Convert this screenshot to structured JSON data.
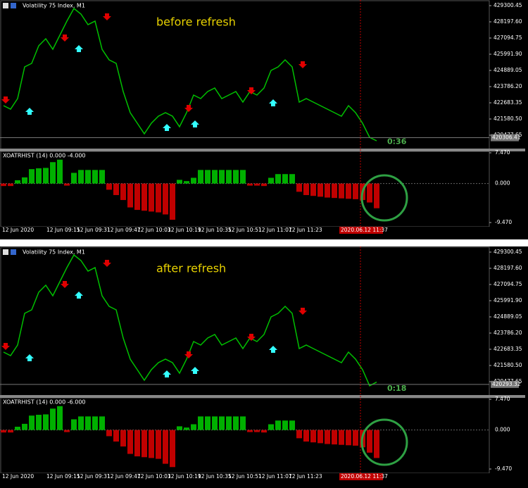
{
  "panels": [
    {
      "window_title": "Volatility 75 Index, M1",
      "annotation": "before refresh",
      "countdown": "0:36",
      "current_price": 420306.41,
      "current_price_label": "420306.41",
      "price": {
        "ylim": [
          419518,
          429684
        ],
        "yticks": [
          429300.45,
          {
            "value": 428197.6,
            "label": "428197.60"
          },
          427094.75,
          {
            "value": 425991.9,
            "label": "425991.90"
          },
          424889.05,
          {
            "value": 423786.2,
            "label": "423786.20"
          },
          422683.35,
          {
            "value": 421580.5,
            "label": "421580.50"
          },
          420477.65
        ],
        "values": [
          422491,
          422251,
          422971,
          425128,
          425368,
          426567,
          427046,
          426327,
          427286,
          428245,
          429108,
          428725,
          428005,
          428245,
          426327,
          425608,
          425368,
          423450,
          422012,
          421292,
          420573,
          421292,
          421772,
          422012,
          421772,
          421053,
          422012,
          423210,
          422971,
          423450,
          423690,
          422971,
          423210,
          423450,
          422731,
          423450,
          423210,
          423690,
          424889,
          425128,
          425608,
          425128,
          422731,
          422971,
          422731,
          422491,
          422251,
          422012,
          421772,
          422491,
          422012,
          421292,
          420333,
          420094
        ]
      },
      "indicator": {
        "title": "XOATRHIST (14) 0.000 -4.000",
        "ylim": [
          -10.15,
          7.81
        ],
        "yticks": [
          {
            "value": 7.47,
            "label": "7.470"
          },
          {
            "value": 0,
            "label": "0.000"
          },
          {
            "value": -9.47,
            "label": "-9.470"
          }
        ],
        "values": [
          -0.6,
          -0.6,
          0.8,
          1.5,
          3.5,
          3.7,
          3.8,
          5.2,
          5.8,
          -0.5,
          2.6,
          3.3,
          3.3,
          3.3,
          3.3,
          -1.5,
          -2.8,
          -4.0,
          -5.8,
          -6.4,
          -6.6,
          -6.8,
          -7.0,
          -7.5,
          -8.8,
          0.9,
          0.6,
          1.4,
          3.3,
          3.3,
          3.3,
          3.3,
          3.3,
          3.3,
          3.3,
          -0.5,
          -0.5,
          -0.6,
          1.4,
          2.3,
          2.3,
          2.3,
          -2.0,
          -2.8,
          -3.0,
          -3.2,
          -3.4,
          -3.5,
          -3.6,
          -3.7,
          -3.8,
          -4.0,
          -4.6,
          -6.0
        ]
      },
      "time_labels": [
        "12 Jun 2020",
        "12 Jun 09:15",
        "12 Jun 09:31",
        "12 Jun 09:47",
        "12 Jun 10:03",
        "12 Jun 10:19",
        "12 Jun 10:35",
        "12 Jun 10:51",
        "12 Jun 11:07",
        "12 Jun 11:23"
      ],
      "cursor_time": "2020.06.12 11:37"
    },
    {
      "window_title": "Volatility 75 Index, M1",
      "annotation": "after refresh",
      "countdown": "0:18",
      "current_price": 420293.32,
      "current_price_label": "420293.32",
      "price": {
        "ylim": [
          419518,
          429684
        ],
        "yticks": [
          429300.45,
          {
            "value": 428197.6,
            "label": "428197.60"
          },
          427094.75,
          {
            "value": 425991.9,
            "label": "425991.90"
          },
          424889.05,
          {
            "value": 423786.2,
            "label": "423786.20"
          },
          422683.35,
          {
            "value": 421580.5,
            "label": "421580.50"
          },
          420477.65
        ],
        "values": [
          422491,
          422251,
          422971,
          425128,
          425368,
          426567,
          427046,
          426327,
          427286,
          428245,
          429108,
          428725,
          428005,
          428245,
          426327,
          425608,
          425368,
          423450,
          422012,
          421292,
          420573,
          421292,
          421772,
          422012,
          421772,
          421053,
          422012,
          423210,
          422971,
          423450,
          423690,
          422971,
          423210,
          423450,
          422731,
          423450,
          423210,
          423690,
          424889,
          425128,
          425608,
          425128,
          422731,
          422971,
          422731,
          422491,
          422251,
          422012,
          421772,
          422491,
          422012,
          421292,
          420200,
          420450
        ]
      },
      "indicator": {
        "title": "XOATRHIST (14) 0.000 -6.000",
        "ylim": [
          -10.15,
          7.81
        ],
        "yticks": [
          {
            "value": 7.47,
            "label": "7.470"
          },
          {
            "value": 0,
            "label": "0.000"
          },
          {
            "value": -9.47,
            "label": "-9.470"
          }
        ],
        "values": [
          -0.6,
          -0.6,
          0.8,
          1.5,
          3.5,
          3.7,
          3.8,
          5.2,
          5.8,
          -0.5,
          2.6,
          3.3,
          3.3,
          3.3,
          3.3,
          -1.5,
          -2.8,
          -4.0,
          -5.8,
          -6.4,
          -6.6,
          -6.8,
          -7.0,
          -8.2,
          -9.0,
          0.9,
          0.6,
          1.4,
          3.3,
          3.3,
          3.3,
          3.3,
          3.3,
          3.3,
          3.3,
          -0.5,
          -0.5,
          -0.6,
          1.4,
          2.3,
          2.3,
          2.3,
          -2.0,
          -2.8,
          -3.0,
          -3.2,
          -3.4,
          -3.5,
          -3.6,
          -3.7,
          -3.8,
          -4.2,
          -5.5,
          -6.8
        ]
      },
      "time_labels": [
        "12 Jun 2020",
        "12 Jun 09:15",
        "12 Jun 09:31",
        "12 Jun 09:47",
        "12 Jun 10:03",
        "12 Jun 10:19",
        "12 Jun 10:35",
        "12 Jun 10:51",
        "12 Jun 11:07",
        "12 Jun 11:23"
      ],
      "cursor_time": "2020.06.12 11:37"
    }
  ]
}
